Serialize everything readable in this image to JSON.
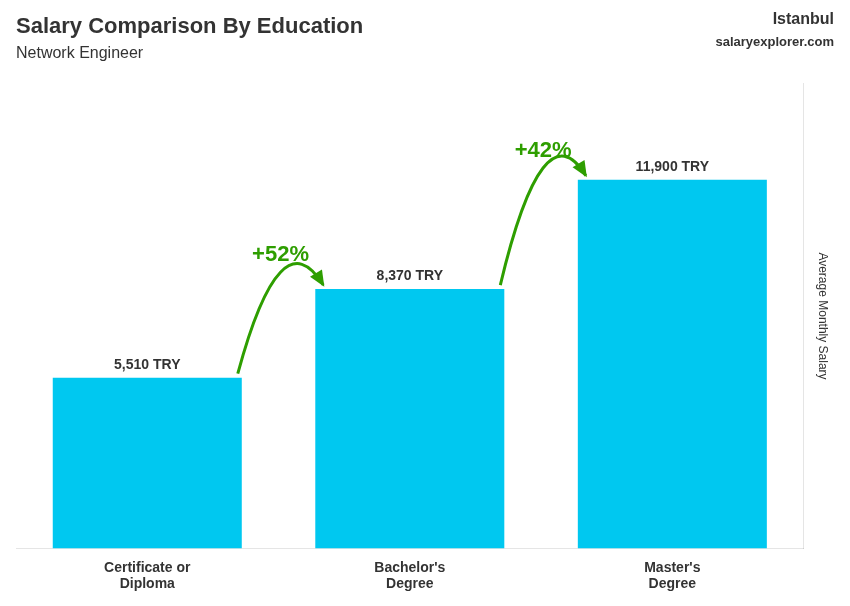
{
  "chart_data": {
    "type": "bar",
    "title": "Salary Comparison By Education",
    "subtitle": "Network Engineer",
    "categories": [
      "Certificate or\nDiploma",
      "Bachelor's\nDegree",
      "Master's\nDegree"
    ],
    "values": [
      5510,
      8370,
      11900
    ],
    "value_labels": [
      "5,510 TRY",
      "8,370 TRY",
      "11,900 TRY"
    ],
    "data_labels": true,
    "color": "#00c8f0",
    "ylim": [
      0,
      15000
    ],
    "ylabel": "Average Monthly Salary",
    "grid": false,
    "tick_labels": "x",
    "annotations": [
      {
        "text": "+52%",
        "from": "Certificate or\nDiploma",
        "to": "Bachelor's\nDegree"
      },
      {
        "text": "+42%",
        "from": "Bachelor's\nDegree",
        "to": "Master's\nDegree"
      },
      {
        "text": "Istanbul"
      },
      {
        "text": "salaryexplorer.com"
      }
    ]
  }
}
